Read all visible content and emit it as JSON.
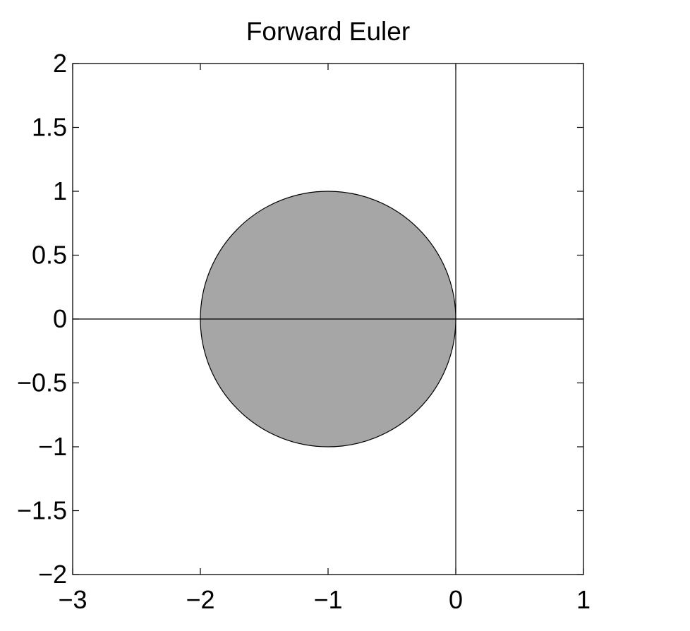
{
  "chart_data": {
    "type": "area",
    "title": "Forward Euler",
    "xlabel": "",
    "ylabel": "",
    "xlim": [
      -3,
      1
    ],
    "ylim": [
      -2,
      2
    ],
    "xticks": [
      -3,
      -2,
      -1,
      0,
      1
    ],
    "yticks": [
      -2,
      -1.5,
      -1,
      -0.5,
      0,
      0.5,
      1,
      1.5,
      2
    ],
    "xtick_labels": [
      "−3",
      "−2",
      "−1",
      "0",
      "1"
    ],
    "ytick_labels": [
      "−2",
      "−1.5",
      "−1",
      "−0.5",
      "0",
      "0.5",
      "1",
      "1.5",
      "2"
    ],
    "grid": false,
    "reference_lines": {
      "x": 0,
      "y": 0
    },
    "shapes": [
      {
        "kind": "disk",
        "center": [
          -1,
          0
        ],
        "radius": 1,
        "fill": "#a6a6a6",
        "stroke": "#000000"
      }
    ]
  }
}
